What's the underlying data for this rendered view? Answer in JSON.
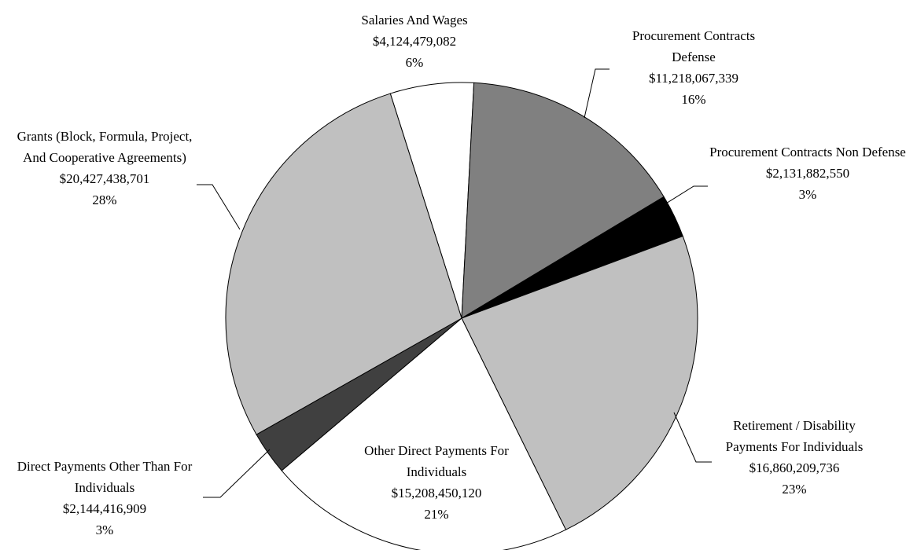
{
  "chart_data": {
    "type": "pie",
    "categories": [
      "Salaries And Wages",
      "Procurement Contracts Defense",
      "Procurement Contracts Non Defense",
      "Retirement / Disability Payments For Individuals",
      "Other Direct Payments For Individuals",
      "Direct Payments Other Than For Individuals",
      "Grants (Block, Formula, Project, And Cooperative Agreements)"
    ],
    "values": [
      4124479082,
      11218067339,
      2131882550,
      16860209736,
      15208450120,
      2144416909,
      20427438701
    ],
    "value_labels": [
      "$4,124,479,082",
      "$11,218,067,339",
      "$2,131,882,550",
      "$16,860,209,736",
      "$15,208,450,120",
      "$2,144,416,909",
      "$20,427,438,701"
    ],
    "percent_labels": [
      "6%",
      "16%",
      "3%",
      "23%",
      "21%",
      "3%",
      "28%"
    ],
    "colors": [
      "#ffffff",
      "#808080",
      "#000000",
      "#c0c0c0",
      "#ffffff",
      "#404040",
      "#c0c0c0"
    ]
  }
}
